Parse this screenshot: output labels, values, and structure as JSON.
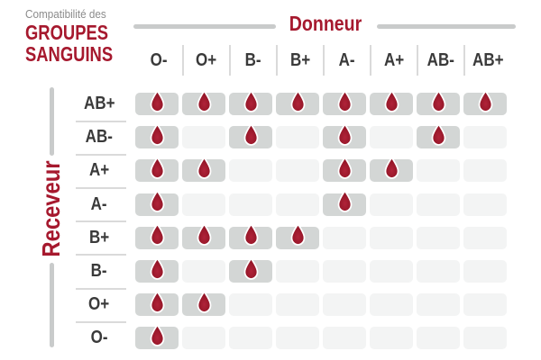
{
  "title": {
    "eyebrow": "Compatibilité des",
    "line1": "GROUPES",
    "line2": "SANGUINS"
  },
  "donor_header": "Donneur",
  "receiver_header": "Receveur",
  "colors": {
    "red": "#a6192e",
    "drop_dark": "#8c1222",
    "gray_text": "#8b8b8b",
    "label_text": "#3a3a3a",
    "bar": "#c9cbcb",
    "line": "#dadada",
    "cell_filled": "#d3d6d5",
    "cell_empty": "#f3f4f4"
  },
  "icons": {
    "compatible": "blood-drop-icon"
  },
  "chart_data": {
    "type": "heatmap",
    "title": "Compatibilité des GROUPES SANGUINS",
    "columns_axis_label": "Donneur",
    "rows_axis_label": "Receveur",
    "columns": [
      "O-",
      "O+",
      "B-",
      "B+",
      "A-",
      "A+",
      "AB-",
      "AB+"
    ],
    "rows": [
      "AB+",
      "AB-",
      "A+",
      "A-",
      "B+",
      "B-",
      "O+",
      "O-"
    ],
    "matrix": [
      [
        1,
        1,
        1,
        1,
        1,
        1,
        1,
        1
      ],
      [
        1,
        0,
        1,
        0,
        1,
        0,
        1,
        0
      ],
      [
        1,
        1,
        0,
        0,
        1,
        1,
        0,
        0
      ],
      [
        1,
        0,
        0,
        0,
        1,
        0,
        0,
        0
      ],
      [
        1,
        1,
        1,
        1,
        0,
        0,
        0,
        0
      ],
      [
        1,
        0,
        1,
        0,
        0,
        0,
        0,
        0
      ],
      [
        1,
        1,
        0,
        0,
        0,
        0,
        0,
        0
      ],
      [
        1,
        0,
        0,
        0,
        0,
        0,
        0,
        0
      ]
    ],
    "legend": "drop = compatible, empty = incompatible",
    "grid": "rounded cells, filled gray when compatible, light gray otherwise"
  }
}
